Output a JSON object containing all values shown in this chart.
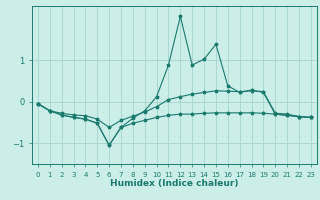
{
  "xlabel": "Humidex (Indice chaleur)",
  "bg_color": "#cceee8",
  "line_color": "#1a7a6e",
  "grid_color": "#aad8d0",
  "x": [
    0,
    1,
    2,
    3,
    4,
    5,
    6,
    7,
    8,
    9,
    10,
    11,
    12,
    13,
    14,
    15,
    16,
    17,
    18,
    19,
    20,
    21,
    22,
    23
  ],
  "series": [
    [
      -0.05,
      -0.22,
      -0.32,
      -0.38,
      -0.42,
      -0.52,
      -1.05,
      -0.62,
      -0.52,
      -0.45,
      -0.38,
      -0.33,
      -0.3,
      -0.3,
      -0.28,
      -0.27,
      -0.27,
      -0.27,
      -0.27,
      -0.28,
      -0.3,
      -0.33,
      -0.36,
      -0.38
    ],
    [
      -0.05,
      -0.22,
      -0.32,
      -0.38,
      -0.42,
      -0.52,
      -1.05,
      -0.62,
      -0.4,
      -0.22,
      0.12,
      0.88,
      2.05,
      0.88,
      1.02,
      1.38,
      0.38,
      0.22,
      0.28,
      0.22,
      -0.3,
      -0.33,
      -0.36,
      -0.38
    ],
    [
      -0.05,
      -0.22,
      -0.28,
      -0.32,
      -0.34,
      -0.42,
      -0.62,
      -0.45,
      -0.35,
      -0.25,
      -0.12,
      0.05,
      0.12,
      0.18,
      0.22,
      0.26,
      0.25,
      0.24,
      0.26,
      0.24,
      -0.28,
      -0.3,
      -0.36,
      -0.38
    ]
  ],
  "ylim": [
    -1.5,
    2.3
  ],
  "yticks": [
    -1,
    0,
    1
  ],
  "ytick_labels": [
    "-1",
    "0",
    "1"
  ],
  "xlim": [
    -0.5,
    23.5
  ],
  "xticks": [
    0,
    1,
    2,
    3,
    4,
    5,
    6,
    7,
    8,
    9,
    10,
    11,
    12,
    13,
    14,
    15,
    16,
    17,
    18,
    19,
    20,
    21,
    22,
    23
  ]
}
